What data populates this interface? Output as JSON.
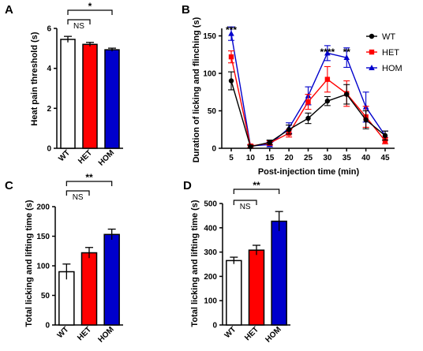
{
  "chart_data": [
    {
      "panel": "A",
      "type": "bar",
      "categories": [
        "WT",
        "HET",
        "HOM"
      ],
      "values": [
        5.45,
        5.2,
        4.93
      ],
      "errors": [
        0.15,
        0.1,
        0.08
      ],
      "colors": [
        "#ffffff",
        "#ff0000",
        "#0000cc"
      ],
      "ylabel": "Heat pain threshold (s)",
      "ylim": [
        0,
        6
      ],
      "yticks": [
        "0",
        "2",
        "4",
        "6"
      ],
      "comparisons": [
        {
          "from": "WT",
          "to": "HET",
          "label": "NS"
        },
        {
          "from": "WT",
          "to": "HOM",
          "label": "*"
        }
      ]
    },
    {
      "panel": "B",
      "type": "line",
      "x": [
        5,
        10,
        15,
        20,
        25,
        30,
        35,
        40,
        45
      ],
      "xticks": [
        "5",
        "10",
        "15",
        "20",
        "25",
        "30",
        "35",
        "40",
        "45"
      ],
      "xlabel": "Post-injection time (min)",
      "ylabel": "Duration of licking and flinching (s)",
      "ylim": [
        0,
        160
      ],
      "yticks": [
        "0",
        "50",
        "100",
        "150"
      ],
      "legend_position": "top-right",
      "series": [
        {
          "name": "WT",
          "color": "#000000",
          "marker": "circle",
          "values": [
            90,
            2,
            8,
            25,
            40,
            63,
            72,
            38,
            17
          ],
          "errors": [
            12,
            2,
            3,
            6,
            7,
            6,
            13,
            12,
            6
          ]
        },
        {
          "name": "HET",
          "color": "#ff0000",
          "marker": "square",
          "values": [
            122,
            3,
            7,
            20,
            62,
            92,
            73,
            42,
            10
          ],
          "errors": [
            8,
            2,
            3,
            5,
            10,
            17,
            17,
            14,
            4
          ]
        },
        {
          "name": "HOM",
          "color": "#0000cc",
          "marker": "triangle",
          "values": [
            153,
            3,
            5,
            27,
            70,
            127,
            121,
            55,
            17
          ],
          "errors": [
            9,
            2,
            3,
            7,
            12,
            10,
            13,
            20,
            6
          ]
        }
      ],
      "annotations": [
        {
          "x": 5,
          "label": "***"
        },
        {
          "x": 30,
          "label": "****"
        },
        {
          "x": 35,
          "label": "**"
        }
      ]
    },
    {
      "panel": "C",
      "type": "bar",
      "categories": [
        "WT",
        "HET",
        "HOM"
      ],
      "values": [
        90,
        122,
        153
      ],
      "errors": [
        13,
        9,
        9
      ],
      "colors": [
        "#ffffff",
        "#ff0000",
        "#0000cc"
      ],
      "ylabel": "Total licking and lifting time (s)",
      "ylim": [
        0,
        200
      ],
      "yticks": [
        "0",
        "50",
        "100",
        "150",
        "200"
      ],
      "comparisons": [
        {
          "from": "WT",
          "to": "HET",
          "label": "NS"
        },
        {
          "from": "WT",
          "to": "HOM",
          "label": "**"
        }
      ]
    },
    {
      "panel": "D",
      "type": "bar",
      "categories": [
        "WT",
        "HET",
        "HOM"
      ],
      "values": [
        265,
        308,
        427
      ],
      "errors": [
        14,
        20,
        40
      ],
      "colors": [
        "#ffffff",
        "#ff0000",
        "#0000cc"
      ],
      "ylabel": "Total licking and lifting time (s)",
      "ylim": [
        0,
        500
      ],
      "yticks": [
        "0",
        "100",
        "200",
        "300",
        "400",
        "500"
      ],
      "comparisons": [
        {
          "from": "WT",
          "to": "HET",
          "label": "NS"
        },
        {
          "from": "WT",
          "to": "HOM",
          "label": "**"
        }
      ]
    }
  ]
}
